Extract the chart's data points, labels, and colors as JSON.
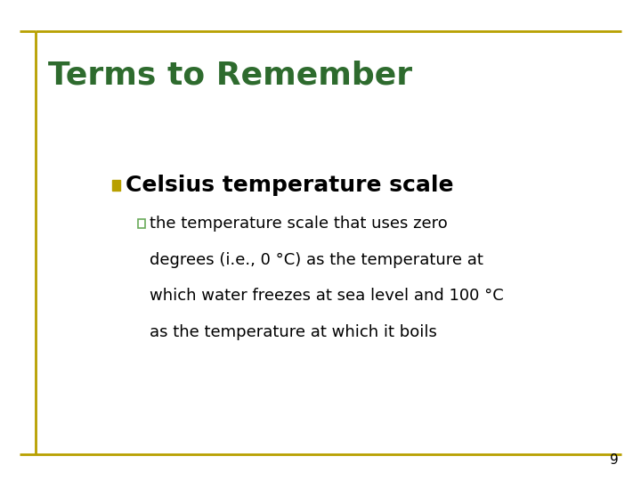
{
  "title": "Terms to Remember",
  "title_color": "#2E6B2E",
  "title_fontsize": 26,
  "background_color": "#FFFFFF",
  "border_color": "#B8A000",
  "bullet1_text": "Celsius temperature scale",
  "bullet1_color": "#000000",
  "bullet1_fontsize": 18,
  "bullet1_marker_color": "#B8A000",
  "bullet2_lines": [
    "the temperature scale that uses zero",
    "degrees (i.e., 0 °C) as the temperature at",
    "which water freezes at sea level and 100 °C",
    "as the temperature at which it boils"
  ],
  "bullet2_color": "#000000",
  "bullet2_fontsize": 13,
  "bullet2_marker_color": "#6aaa5a",
  "page_number": "9",
  "page_number_color": "#000000",
  "page_number_fontsize": 11
}
